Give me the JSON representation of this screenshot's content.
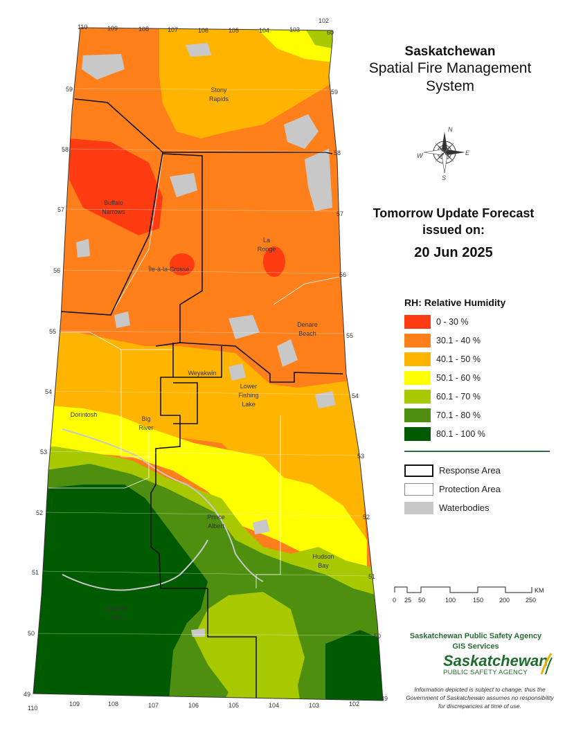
{
  "title": {
    "province": "Saskatchewan",
    "line1": "Spatial Fire Management",
    "line2": "System"
  },
  "forecast": {
    "line1": "Tomorrow Update Forecast",
    "line2": "issued on:",
    "date": "20 Jun 2025"
  },
  "legend": {
    "title": "RH: Relative Humidity",
    "classes": [
      {
        "label": "0 - 30 %",
        "color": "#ff3b12"
      },
      {
        "label": "30.1 - 40 %",
        "color": "#ff7f1a"
      },
      {
        "label": "40.1 - 50 %",
        "color": "#ffb400"
      },
      {
        "label": "50.1 - 60 %",
        "color": "#ffff00"
      },
      {
        "label": "60.1 - 70 %",
        "color": "#a8c800"
      },
      {
        "label": "70.1 - 80 %",
        "color": "#4f8f10"
      },
      {
        "label": "80.1 - 100 %",
        "color": "#005a00"
      }
    ],
    "boundaries": [
      {
        "label": "Response Area"
      },
      {
        "label": "Protection Area"
      },
      {
        "label": "Waterbodies",
        "color": "#c8c8c8"
      }
    ]
  },
  "map": {
    "longitude_labels_top": [
      "110",
      "109",
      "108",
      "107",
      "106",
      "105",
      "104",
      "103",
      "102"
    ],
    "longitude_labels_bottom": [
      "110",
      "109",
      "108",
      "107",
      "106",
      "105",
      "104",
      "103",
      "102"
    ],
    "latitude_labels_left": [
      "59",
      "58",
      "57",
      "56",
      "55",
      "54",
      "53",
      "52",
      "51",
      "50",
      "49"
    ],
    "latitude_labels_right": [
      "60",
      "59",
      "58",
      "57",
      "56",
      "55",
      "54",
      "53",
      "52",
      "51",
      "50",
      "49"
    ],
    "places": [
      {
        "name": "Stony",
        "name2": "Rapids"
      },
      {
        "name": "Buffalo",
        "name2": "Narrows"
      },
      {
        "name": "La",
        "name2": "Ronge"
      },
      {
        "name": "Île-à-la-Crosse",
        "name2": ""
      },
      {
        "name": "Denare",
        "name2": "Beach"
      },
      {
        "name": "Weyakwin",
        "name2": ""
      },
      {
        "name": "Lower",
        "name2": "Fishing",
        "name3": "Lake"
      },
      {
        "name": "Dorintosh",
        "name2": ""
      },
      {
        "name": "Big",
        "name2": "River"
      },
      {
        "name": "Prince",
        "name2": "Albert"
      },
      {
        "name": "Hudson",
        "name2": "Bay"
      },
      {
        "name": "Cypress",
        "name2": "Hills"
      }
    ],
    "compass": {
      "n": "N",
      "s": "S",
      "e": "E",
      "w": "W"
    }
  },
  "scale_bar": {
    "unit": "KM",
    "ticks": [
      "0",
      "25",
      "50",
      "100",
      "150",
      "200",
      "250"
    ]
  },
  "agency": {
    "line1": "Saskatchewan Public Safety Agency",
    "line2": "GIS  Services",
    "logo_name": "Saskatchewan",
    "logo_sub": "PUBLIC SAFETY AGENCY"
  },
  "disclaimer": "Information depicted is subject to change, thus the Government of Saskatchewan assumes no responsibility for discrepancies at time of use."
}
